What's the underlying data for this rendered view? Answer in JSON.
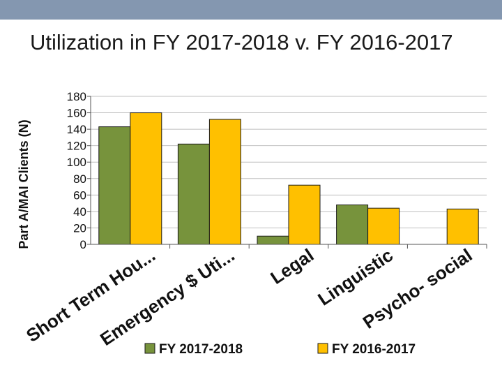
{
  "chart_data": {
    "type": "bar",
    "title": "Utilization in FY 2017-2018 v. FY 2016-2017",
    "xlabel": "",
    "ylabel": "Part A/MAI Clients (N)",
    "ylim": [
      0,
      180
    ],
    "yticks": [
      0,
      20,
      40,
      60,
      80,
      100,
      120,
      140,
      160,
      180
    ],
    "grid": true,
    "legend_position": "bottom",
    "categories": [
      "Short Term Hou...",
      "Emergency $ Uti...",
      "Legal",
      "Linguistic",
      "Psycho- social"
    ],
    "series": [
      {
        "name": "FY 2017-2018",
        "color": "#77933c",
        "values": [
          143,
          122,
          10,
          48,
          0
        ]
      },
      {
        "name": "FY 2016-2017",
        "color": "#ffc000",
        "values": [
          160,
          152,
          72,
          44,
          43
        ]
      }
    ]
  },
  "colors": {
    "header_bar": "#8497b0",
    "grid": "#bfbfbf",
    "bar_outline": "#1a1a1a"
  }
}
